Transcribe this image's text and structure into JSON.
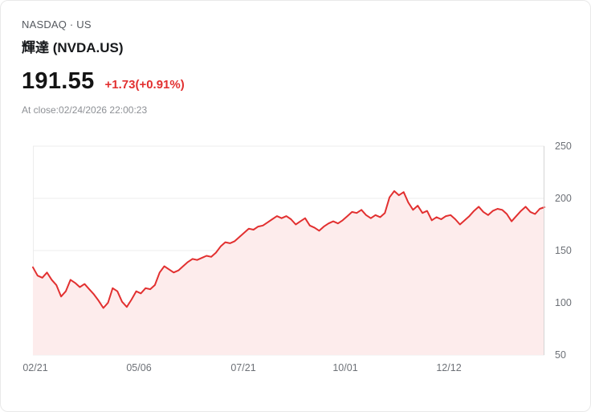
{
  "header": {
    "exchange_line": "NASDAQ · US",
    "stock_name": "輝達 (NVDA.US)",
    "price": "191.55",
    "change": "+1.73(+0.91%)",
    "close_info": "At close:02/24/2026 22:00:23"
  },
  "colors": {
    "line": "#e23030",
    "area_fill": "#fdecec",
    "change_text": "#e23030",
    "gridline": "#ececec",
    "axis_line": "#d4d4d4"
  },
  "chart_data": {
    "type": "area",
    "title": "輝達 (NVDA.US)",
    "xlabel": "",
    "ylabel": "",
    "ylim": [
      50,
      250
    ],
    "grid": true,
    "legend": "none",
    "y_ticks": [
      250,
      200,
      150,
      100,
      50
    ],
    "x_ticks": [
      {
        "label": "02/21",
        "pos": 0.004
      },
      {
        "label": "05/06",
        "pos": 0.207
      },
      {
        "label": "07/21",
        "pos": 0.411
      },
      {
        "label": "10/01",
        "pos": 0.611
      },
      {
        "label": "12/12",
        "pos": 0.813
      }
    ],
    "values": [
      134,
      126,
      124,
      129,
      122,
      117,
      106,
      111,
      122,
      119,
      115,
      118,
      113,
      108,
      102,
      95,
      100,
      114,
      111,
      101,
      96,
      103,
      111,
      109,
      114,
      113,
      117,
      129,
      135,
      132,
      129,
      131,
      135,
      139,
      142,
      141,
      143,
      145,
      144,
      148,
      154,
      158,
      157,
      159,
      163,
      167,
      171,
      170,
      173,
      174,
      177,
      180,
      183,
      181,
      183,
      180,
      175,
      178,
      181,
      174,
      172,
      169,
      173,
      176,
      178,
      176,
      179,
      183,
      187,
      186,
      189,
      184,
      181,
      184,
      182,
      186,
      201,
      207,
      203,
      206,
      196,
      189,
      193,
      186,
      188,
      179,
      182,
      180,
      183,
      184,
      180,
      175,
      179,
      183,
      188,
      192,
      187,
      184,
      188,
      190,
      189,
      185,
      178,
      183,
      188,
      192,
      187,
      185,
      190,
      191.55
    ]
  }
}
